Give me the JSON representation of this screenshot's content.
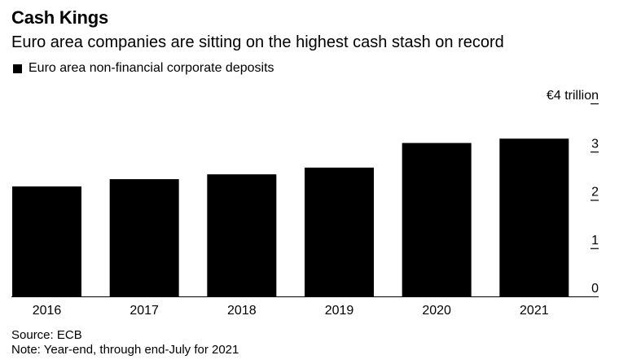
{
  "title": "Cash Kings",
  "subtitle": "Euro area companies are sitting on the highest cash stash on record",
  "legend": {
    "label": "Euro area non-financial corporate deposits"
  },
  "footer": {
    "source": "Source: ECB",
    "note": "Note: Year-end, through end-July for 2021"
  },
  "colors": {
    "bar": "#000000",
    "axis": "#000000",
    "background": "#ffffff"
  },
  "chart_data": {
    "type": "bar",
    "title": "Cash Kings",
    "subtitle": "Euro area companies are sitting on the highest cash stash on record",
    "xlabel": "",
    "ylabel": "",
    "ylim": [
      0,
      4
    ],
    "yunit_label": "€4 trillion",
    "yticks": [
      0,
      1,
      2,
      3,
      4
    ],
    "ytick_labels": [
      "0",
      "1",
      "2",
      "3",
      "€4 trillion"
    ],
    "categories": [
      "2016",
      "2017",
      "2018",
      "2019",
      "2020",
      "2021"
    ],
    "series": [
      {
        "name": "Euro area non-financial corporate deposits",
        "values": [
          2.28,
          2.43,
          2.53,
          2.67,
          3.18,
          3.27
        ]
      }
    ],
    "grid": false,
    "legend_position": "top-left",
    "axis_position": "right"
  }
}
